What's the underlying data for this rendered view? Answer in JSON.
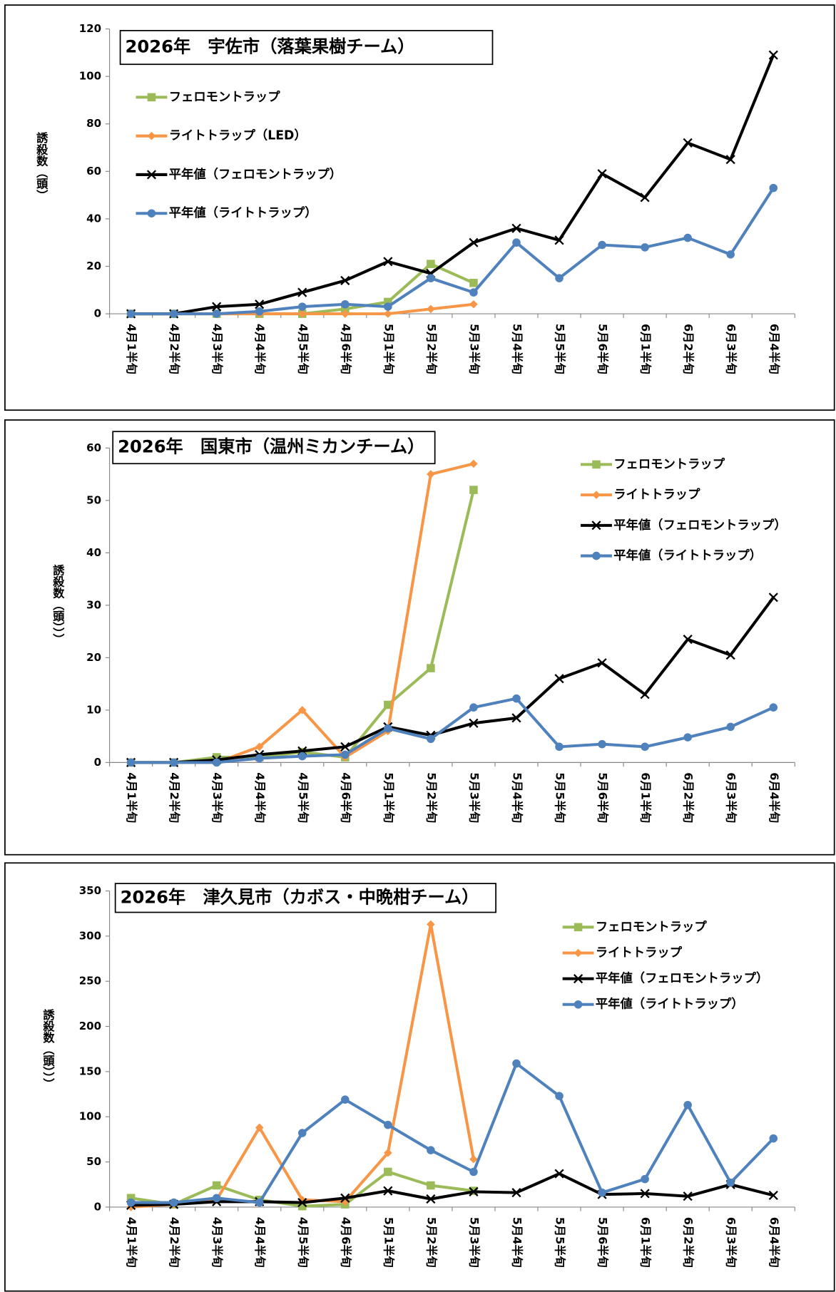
{
  "chart_data": [
    {
      "type": "line",
      "title": "2026年　宇佐市（落葉果樹チーム）",
      "ylabel": "誘殺数（頭）",
      "categories": [
        "4月1半旬",
        "4月2半旬",
        "4月3半旬",
        "4月4半旬",
        "4月5半旬",
        "4月6半旬",
        "5月1半旬",
        "5月2半旬",
        "5月3半旬",
        "5月4半旬",
        "5月5半旬",
        "5月6半旬",
        "6月1半旬",
        "6月2半旬",
        "6月3半旬",
        "6月4半旬"
      ],
      "ylim": [
        0,
        120
      ],
      "yticks": [
        0,
        20,
        40,
        60,
        80,
        100,
        120
      ],
      "series": [
        {
          "name": "フェロモントラップ",
          "color": "#9bbb59",
          "marker": "square",
          "values": [
            0,
            0,
            0,
            0,
            0,
            2,
            5,
            21,
            13,
            null,
            null,
            null,
            null,
            null,
            null,
            null
          ]
        },
        {
          "name": "ライトトラップ（LED）",
          "color": "#f79646",
          "marker": "diamond",
          "values": [
            0,
            0,
            0,
            0,
            0,
            0,
            0,
            2,
            4,
            null,
            null,
            null,
            null,
            null,
            null,
            null
          ]
        },
        {
          "name": "平年値（フェロモントラップ）",
          "color": "#000000",
          "marker": "x",
          "values": [
            0,
            0,
            3,
            4,
            9,
            14,
            22,
            17,
            30,
            36,
            31,
            59,
            49,
            72,
            65,
            109
          ]
        },
        {
          "name": "平年値（ライトトラップ）",
          "color": "#4f81bd",
          "marker": "circle",
          "values": [
            0,
            0,
            0,
            1,
            3,
            4,
            3,
            15,
            9,
            30,
            15,
            29,
            28,
            32,
            25,
            53
          ]
        }
      ]
    },
    {
      "type": "line",
      "title": "2026年　国東市（温州ミカンチーム）",
      "ylabel": "誘殺数（頭）））",
      "categories": [
        "4月1半旬",
        "4月2半旬",
        "4月3半旬",
        "4月4半旬",
        "4月5半旬",
        "4月6半旬",
        "5月1半旬",
        "5月2半旬",
        "5月3半旬",
        "5月4半旬",
        "5月5半旬",
        "5月6半旬",
        "6月1半旬",
        "6月2半旬",
        "6月3半旬",
        "6月4半旬"
      ],
      "ylim": [
        0,
        60
      ],
      "yticks": [
        0,
        10,
        20,
        30,
        40,
        50,
        60
      ],
      "series": [
        {
          "name": "フェロモントラップ",
          "color": "#9bbb59",
          "marker": "square",
          "values": [
            0,
            0,
            1,
            1,
            2,
            1,
            11,
            18,
            52,
            null,
            null,
            null,
            null,
            null,
            null,
            null
          ]
        },
        {
          "name": "ライトトラップ",
          "color": "#f79646",
          "marker": "diamond",
          "values": [
            0,
            0,
            0,
            3,
            10,
            1,
            6,
            55,
            57,
            null,
            null,
            null,
            null,
            null,
            null,
            null
          ]
        },
        {
          "name": "平年値（フェロモントラップ）",
          "color": "#000000",
          "marker": "x",
          "values": [
            0,
            0,
            0.5,
            1.5,
            2.2,
            3,
            6.8,
            5.2,
            7.5,
            8.5,
            16,
            19,
            13,
            23.5,
            20.5,
            31.5
          ]
        },
        {
          "name": "平年値（ライトトラップ）",
          "color": "#4f81bd",
          "marker": "circle",
          "values": [
            0,
            0,
            0,
            0.8,
            1.2,
            1.5,
            6.5,
            4.5,
            10.5,
            12.2,
            3,
            3.5,
            3,
            4.8,
            6.8,
            10.5
          ]
        }
      ]
    },
    {
      "type": "line",
      "title": "2026年　津久見市（カボス・中晩柑チーム）",
      "ylabel": "誘殺数（頭）））",
      "categories": [
        "4月1半旬",
        "4月2半旬",
        "4月3半旬",
        "4月4半旬",
        "4月5半旬",
        "4月6半旬",
        "5月1半旬",
        "5月2半旬",
        "5月3半旬",
        "5月4半旬",
        "5月5半旬",
        "5月6半旬",
        "6月1半旬",
        "6月2半旬",
        "6月3半旬",
        "6月4半旬"
      ],
      "ylim": [
        0,
        350
      ],
      "yticks": [
        0,
        50,
        100,
        150,
        200,
        250,
        300,
        350
      ],
      "series": [
        {
          "name": "フェロモントラップ",
          "color": "#9bbb59",
          "marker": "square",
          "values": [
            10,
            3,
            24,
            8,
            1,
            3,
            39,
            24,
            18,
            null,
            null,
            null,
            null,
            null,
            null,
            null
          ]
        },
        {
          "name": "ライトトラップ",
          "color": "#f79646",
          "marker": "diamond",
          "values": [
            0,
            3,
            8,
            88,
            8,
            6,
            60,
            313,
            53,
            null,
            null,
            null,
            null,
            null,
            null,
            null
          ]
        },
        {
          "name": "平年値（フェロモントラップ）",
          "color": "#000000",
          "marker": "x",
          "values": [
            2,
            3,
            6,
            6,
            5,
            10,
            18,
            9,
            17,
            16,
            37,
            14,
            15,
            12,
            25,
            13
          ]
        },
        {
          "name": "平年値（ライトトラップ）",
          "color": "#4f81bd",
          "marker": "circle",
          "values": [
            5,
            5,
            10,
            5,
            82,
            119,
            91,
            63,
            39,
            159,
            123,
            16,
            31,
            113,
            27,
            76
          ]
        }
      ]
    }
  ]
}
